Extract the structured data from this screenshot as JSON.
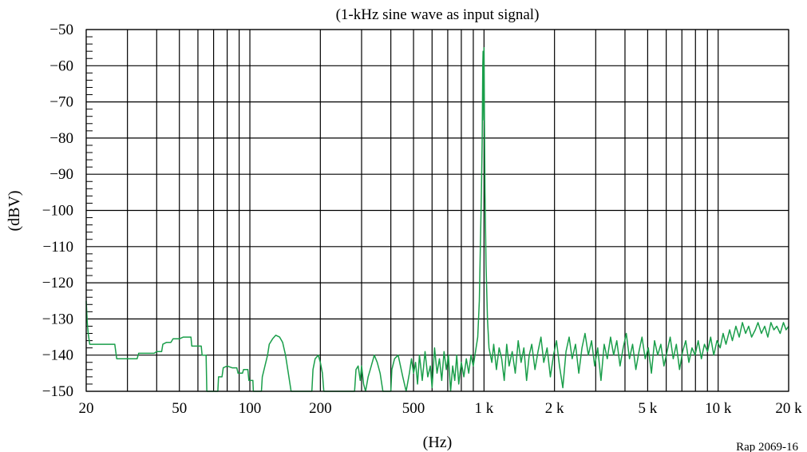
{
  "chart_data": {
    "type": "line",
    "title": "(1-kHz sine wave as input signal)",
    "xlabel": "(Hz)",
    "ylabel": "(dBV)",
    "reference": "Rap 2069-16",
    "x_scale": "log",
    "xlim": [
      20,
      20000
    ],
    "ylim": [
      -150,
      -50
    ],
    "grid": true,
    "line_color": "#1a9e4a",
    "x_gridlines": [
      20,
      30,
      40,
      50,
      60,
      70,
      80,
      90,
      100,
      200,
      300,
      400,
      500,
      600,
      700,
      800,
      900,
      1000,
      2000,
      3000,
      4000,
      5000,
      6000,
      7000,
      8000,
      9000,
      10000,
      20000
    ],
    "x_ticks": [
      {
        "value": 20,
        "label": "20"
      },
      {
        "value": 50,
        "label": "50"
      },
      {
        "value": 100,
        "label": "100"
      },
      {
        "value": 200,
        "label": "200"
      },
      {
        "value": 500,
        "label": "500"
      },
      {
        "value": 1000,
        "label": "1 k"
      },
      {
        "value": 2000,
        "label": "2 k"
      },
      {
        "value": 5000,
        "label": "5 k"
      },
      {
        "value": 10000,
        "label": "10 k"
      },
      {
        "value": 20000,
        "label": "20 k"
      }
    ],
    "y_ticks": [
      {
        "value": -50,
        "label": "−50"
      },
      {
        "value": -60,
        "label": "−60"
      },
      {
        "value": -70,
        "label": "−70"
      },
      {
        "value": -80,
        "label": "−80"
      },
      {
        "value": -90,
        "label": "−90"
      },
      {
        "value": -100,
        "label": "−100"
      },
      {
        "value": -110,
        "label": "−110"
      },
      {
        "value": -120,
        "label": "−120"
      },
      {
        "value": -130,
        "label": "−130"
      },
      {
        "value": -140,
        "label": "−140"
      },
      {
        "value": -150,
        "label": "−150"
      }
    ],
    "series": [
      {
        "points": [
          [
            20,
            -125
          ],
          [
            20.2,
            -131
          ],
          [
            20.4,
            -134
          ],
          [
            20.7,
            -137
          ],
          [
            22,
            -137
          ],
          [
            24,
            -137
          ],
          [
            26.5,
            -137
          ],
          [
            27,
            -141
          ],
          [
            30,
            -141
          ],
          [
            33,
            -141
          ],
          [
            33.5,
            -139.5
          ],
          [
            36,
            -139.5
          ],
          [
            39,
            -139.5
          ],
          [
            40,
            -139
          ],
          [
            42,
            -139
          ],
          [
            42.5,
            -137
          ],
          [
            44,
            -136.5
          ],
          [
            46,
            -136.5
          ],
          [
            47,
            -135.5
          ],
          [
            50,
            -135.5
          ],
          [
            52,
            -135
          ],
          [
            54,
            -135
          ],
          [
            56,
            -135
          ],
          [
            56.5,
            -137.5
          ],
          [
            60,
            -137.5
          ],
          [
            62,
            -137.5
          ],
          [
            62.5,
            -140
          ],
          [
            65,
            -140
          ],
          [
            65.5,
            -150
          ],
          [
            73,
            -150
          ],
          [
            73.5,
            -146
          ],
          [
            76,
            -146
          ],
          [
            77,
            -143.5
          ],
          [
            80,
            -143
          ],
          [
            84,
            -143.5
          ],
          [
            88,
            -143.5
          ],
          [
            89,
            -145
          ],
          [
            93,
            -145
          ],
          [
            94,
            -144
          ],
          [
            98,
            -144
          ],
          [
            99,
            -147
          ],
          [
            103,
            -147
          ],
          [
            103.5,
            -150
          ],
          [
            112,
            -150
          ],
          [
            113,
            -146
          ],
          [
            116,
            -143
          ],
          [
            119,
            -140
          ],
          [
            121,
            -137
          ],
          [
            125,
            -135.5
          ],
          [
            129,
            -134.5
          ],
          [
            134,
            -135
          ],
          [
            138,
            -136.5
          ],
          [
            142,
            -140
          ],
          [
            146,
            -145
          ],
          [
            150,
            -150
          ],
          [
            184,
            -150
          ],
          [
            186,
            -144
          ],
          [
            190,
            -141
          ],
          [
            196,
            -140
          ],
          [
            200,
            -142
          ],
          [
            204,
            -145
          ],
          [
            207,
            -150
          ],
          [
            280,
            -150
          ],
          [
            284,
            -144
          ],
          [
            290,
            -143
          ],
          [
            296,
            -147
          ],
          [
            300,
            -143
          ],
          [
            306,
            -148
          ],
          [
            312,
            -150
          ],
          [
            320,
            -146
          ],
          [
            330,
            -143
          ],
          [
            340,
            -140
          ],
          [
            350,
            -142
          ],
          [
            360,
            -145
          ],
          [
            370,
            -150
          ],
          [
            400,
            -150
          ],
          [
            404,
            -144
          ],
          [
            415,
            -141
          ],
          [
            430,
            -140
          ],
          [
            450,
            -146
          ],
          [
            465,
            -150
          ],
          [
            480,
            -145
          ],
          [
            490,
            -141
          ],
          [
            500,
            -145
          ],
          [
            510,
            -142
          ],
          [
            520,
            -148
          ],
          [
            530,
            -140
          ],
          [
            545,
            -147
          ],
          [
            560,
            -139
          ],
          [
            575,
            -146
          ],
          [
            590,
            -143
          ],
          [
            600,
            -149
          ],
          [
            615,
            -138
          ],
          [
            630,
            -145
          ],
          [
            645,
            -141
          ],
          [
            660,
            -147
          ],
          [
            675,
            -139
          ],
          [
            690,
            -144
          ],
          [
            705,
            -140
          ],
          [
            720,
            -150
          ],
          [
            735,
            -143
          ],
          [
            750,
            -147
          ],
          [
            765,
            -140
          ],
          [
            780,
            -148
          ],
          [
            800,
            -142
          ],
          [
            820,
            -146
          ],
          [
            840,
            -141
          ],
          [
            860,
            -145
          ],
          [
            880,
            -140
          ],
          [
            900,
            -143
          ],
          [
            920,
            -139
          ],
          [
            940,
            -135
          ],
          [
            955,
            -125
          ],
          [
            965,
            -110
          ],
          [
            975,
            -95
          ],
          [
            982,
            -80
          ],
          [
            988,
            -60
          ],
          [
            991,
            -56
          ],
          [
            994,
            -65
          ],
          [
            997,
            -75
          ],
          [
            1000,
            -55
          ],
          [
            1004,
            -75
          ],
          [
            1010,
            -95
          ],
          [
            1020,
            -115
          ],
          [
            1035,
            -130
          ],
          [
            1050,
            -138
          ],
          [
            1080,
            -142
          ],
          [
            1100,
            -137
          ],
          [
            1130,
            -144
          ],
          [
            1160,
            -138
          ],
          [
            1190,
            -141
          ],
          [
            1220,
            -147
          ],
          [
            1250,
            -137
          ],
          [
            1280,
            -143
          ],
          [
            1320,
            -139
          ],
          [
            1360,
            -145
          ],
          [
            1400,
            -136
          ],
          [
            1440,
            -142
          ],
          [
            1480,
            -138
          ],
          [
            1520,
            -147
          ],
          [
            1560,
            -140
          ],
          [
            1600,
            -137
          ],
          [
            1650,
            -144
          ],
          [
            1700,
            -139
          ],
          [
            1750,
            -135
          ],
          [
            1800,
            -142
          ],
          [
            1860,
            -138
          ],
          [
            1920,
            -146
          ],
          [
            1980,
            -140
          ],
          [
            2040,
            -136
          ],
          [
            2100,
            -143
          ],
          [
            2170,
            -149
          ],
          [
            2240,
            -139
          ],
          [
            2310,
            -135
          ],
          [
            2380,
            -141
          ],
          [
            2460,
            -137
          ],
          [
            2540,
            -145
          ],
          [
            2620,
            -138
          ],
          [
            2700,
            -134
          ],
          [
            2790,
            -140
          ],
          [
            2880,
            -136
          ],
          [
            2970,
            -143
          ],
          [
            3060,
            -138
          ],
          [
            3160,
            -147
          ],
          [
            3260,
            -137
          ],
          [
            3360,
            -141
          ],
          [
            3470,
            -135
          ],
          [
            3580,
            -140
          ],
          [
            3690,
            -136
          ],
          [
            3810,
            -143
          ],
          [
            3930,
            -138
          ],
          [
            4050,
            -134
          ],
          [
            4180,
            -141
          ],
          [
            4310,
            -137
          ],
          [
            4450,
            -144
          ],
          [
            4590,
            -139
          ],
          [
            4730,
            -135
          ],
          [
            4880,
            -141
          ],
          [
            5030,
            -138
          ],
          [
            5190,
            -145
          ],
          [
            5350,
            -136
          ],
          [
            5520,
            -140
          ],
          [
            5690,
            -137
          ],
          [
            5870,
            -143
          ],
          [
            6050,
            -139
          ],
          [
            6240,
            -135
          ],
          [
            6430,
            -141
          ],
          [
            6630,
            -137
          ],
          [
            6840,
            -144
          ],
          [
            7050,
            -139
          ],
          [
            7270,
            -136
          ],
          [
            7500,
            -142
          ],
          [
            7730,
            -138
          ],
          [
            7970,
            -140
          ],
          [
            8220,
            -136
          ],
          [
            8480,
            -141
          ],
          [
            8740,
            -137
          ],
          [
            9010,
            -139
          ],
          [
            9290,
            -135
          ],
          [
            9580,
            -140
          ],
          [
            9880,
            -136
          ],
          [
            10200,
            -138
          ],
          [
            10500,
            -134
          ],
          [
            10800,
            -137
          ],
          [
            11200,
            -133
          ],
          [
            11500,
            -136
          ],
          [
            11900,
            -132
          ],
          [
            12300,
            -135
          ],
          [
            12700,
            -131
          ],
          [
            13100,
            -134
          ],
          [
            13500,
            -132
          ],
          [
            13900,
            -135
          ],
          [
            14400,
            -133
          ],
          [
            14800,
            -131
          ],
          [
            15300,
            -134
          ],
          [
            15800,
            -132
          ],
          [
            16300,
            -135
          ],
          [
            16800,
            -131
          ],
          [
            17300,
            -133
          ],
          [
            17800,
            -132
          ],
          [
            18400,
            -134
          ],
          [
            19000,
            -131
          ],
          [
            19500,
            -133
          ],
          [
            20000,
            -132
          ]
        ]
      }
    ]
  }
}
